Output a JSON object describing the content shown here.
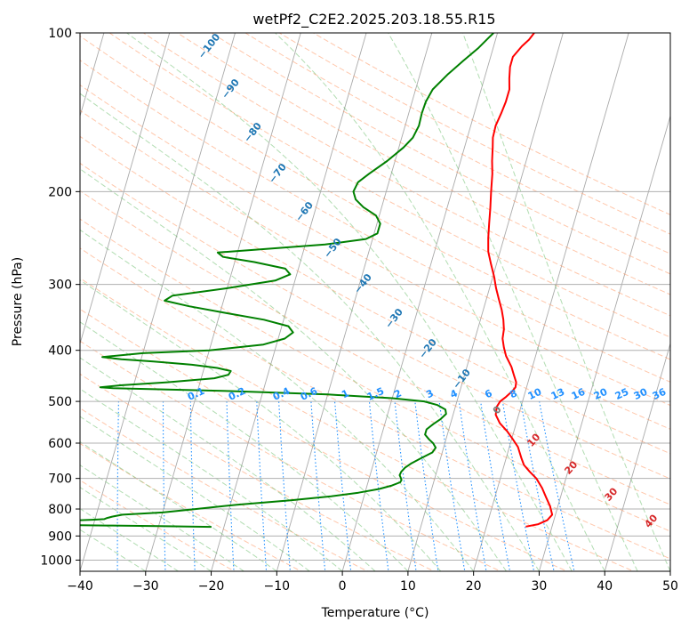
{
  "chart_data": {
    "type": "line",
    "title": "wetPf2_C2E2.2025.203.18.55.R15",
    "xlabel": "Temperature (°C)",
    "ylabel": "Pressure (hPa)",
    "xlim": [
      -40,
      50
    ],
    "ylim": [
      1050,
      100
    ],
    "yscale": "log",
    "grid": true,
    "x_ticks": [
      -40,
      -30,
      -20,
      -10,
      0,
      10,
      20,
      30,
      40,
      50
    ],
    "x_tick_labels": [
      "−40",
      "−30",
      "−20",
      "−10",
      "0",
      "10",
      "20",
      "30",
      "40",
      "50"
    ],
    "y_ticks": [
      100,
      200,
      300,
      400,
      500,
      600,
      700,
      800,
      900,
      1000
    ],
    "y_tick_labels": [
      "100",
      "200",
      "300",
      "400",
      "500",
      "600",
      "700",
      "800",
      "900",
      "1000"
    ],
    "series": [
      {
        "color": "#ff0000",
        "points": [
          [
            864,
            26
          ],
          [
            855,
            27.8
          ],
          [
            840,
            29
          ],
          [
            820,
            29.5
          ],
          [
            790,
            28.8
          ],
          [
            760,
            27.8
          ],
          [
            730,
            26.8
          ],
          [
            700,
            25.5
          ],
          [
            680,
            24.2
          ],
          [
            660,
            23
          ],
          [
            640,
            22.3
          ],
          [
            610,
            21.3
          ],
          [
            590,
            20.2
          ],
          [
            570,
            19.0
          ],
          [
            550,
            17.5
          ],
          [
            530,
            16.5
          ],
          [
            512,
            16.3
          ],
          [
            500,
            16.6
          ],
          [
            490,
            17.3
          ],
          [
            478,
            18.0
          ],
          [
            470,
            18.3
          ],
          [
            460,
            18.2
          ],
          [
            445,
            17.5
          ],
          [
            430,
            16.8
          ],
          [
            410,
            15.5
          ],
          [
            395,
            14.8
          ],
          [
            380,
            14.2
          ],
          [
            365,
            14.0
          ],
          [
            350,
            13.5
          ],
          [
            335,
            12.8
          ],
          [
            320,
            11.9
          ],
          [
            305,
            11.0
          ],
          [
            290,
            10.2
          ],
          [
            275,
            9.2
          ],
          [
            260,
            8.2
          ],
          [
            245,
            7.6
          ],
          [
            230,
            7.1
          ],
          [
            215,
            6.6
          ],
          [
            200,
            6.0
          ],
          [
            185,
            5.4
          ],
          [
            175,
            4.8
          ],
          [
            165,
            4.3
          ],
          [
            158,
            3.9
          ],
          [
            150,
            3.8
          ],
          [
            142,
            4.1
          ],
          [
            135,
            4.3
          ],
          [
            128,
            4.3
          ],
          [
            122,
            3.8
          ],
          [
            116,
            3.4
          ],
          [
            111,
            3.4
          ],
          [
            106,
            4.3
          ],
          [
            103,
            5.1
          ],
          [
            100,
            5.6
          ]
        ]
      },
      {
        "color": "#008000",
        "points": [
          [
            865,
            -21.9
          ],
          [
            862,
            -30
          ],
          [
            860,
            -38
          ],
          [
            858,
            -45
          ],
          [
            842,
            -44
          ],
          [
            838,
            -40
          ],
          [
            836,
            -38.6
          ],
          [
            832,
            -38.2
          ],
          [
            827,
            -37.5
          ],
          [
            820,
            -36
          ],
          [
            812,
            -30
          ],
          [
            800,
            -25
          ],
          [
            785,
            -19
          ],
          [
            770,
            -11
          ],
          [
            757,
            -5
          ],
          [
            745,
            -1
          ],
          [
            733,
            2
          ],
          [
            722,
            3.8
          ],
          [
            712,
            4.9
          ],
          [
            705,
            5.0
          ],
          [
            698,
            4.8
          ],
          [
            690,
            4.5
          ],
          [
            680,
            4.6
          ],
          [
            668,
            5.0
          ],
          [
            655,
            5.8
          ],
          [
            640,
            7.1
          ],
          [
            625,
            8.5
          ],
          [
            612,
            8.8
          ],
          [
            600,
            8.2
          ],
          [
            590,
            7.4
          ],
          [
            578,
            6.6
          ],
          [
            565,
            6.6
          ],
          [
            552,
            7.4
          ],
          [
            540,
            8.3
          ],
          [
            528,
            8.9
          ],
          [
            518,
            8.6
          ],
          [
            508,
            7.2
          ],
          [
            500,
            5.0
          ],
          [
            493,
            0
          ],
          [
            485,
            -10
          ],
          [
            478,
            -25
          ],
          [
            472,
            -43
          ],
          [
            470,
            -45
          ],
          [
            466,
            -42
          ],
          [
            460,
            -35
          ],
          [
            452,
            -28
          ],
          [
            445,
            -26
          ],
          [
            438,
            -25.8
          ],
          [
            432,
            -28
          ],
          [
            426,
            -32
          ],
          [
            420,
            -38
          ],
          [
            416,
            -43
          ],
          [
            412,
            -46
          ],
          [
            405,
            -40
          ],
          [
            400,
            -30
          ],
          [
            390,
            -22
          ],
          [
            380,
            -19
          ],
          [
            370,
            -18
          ],
          [
            360,
            -19
          ],
          [
            350,
            -23
          ],
          [
            340,
            -29
          ],
          [
            330,
            -35
          ],
          [
            322,
            -39
          ],
          [
            315,
            -38
          ],
          [
            305,
            -30
          ],
          [
            295,
            -23
          ],
          [
            287,
            -21
          ],
          [
            280,
            -22
          ],
          [
            272,
            -27
          ],
          [
            266,
            -32
          ],
          [
            261,
            -33
          ],
          [
            257,
            -26
          ],
          [
            252,
            -17
          ],
          [
            246,
            -11
          ],
          [
            240,
            -9.5
          ],
          [
            230,
            -9.5
          ],
          [
            222,
            -10.5
          ],
          [
            214,
            -12.8
          ],
          [
            207,
            -14.3
          ],
          [
            200,
            -15.0
          ],
          [
            192,
            -14.7
          ],
          [
            185,
            -13.4
          ],
          [
            175,
            -11.2
          ],
          [
            165,
            -9.3
          ],
          [
            158,
            -8.3
          ],
          [
            150,
            -7.9
          ],
          [
            142,
            -8.0
          ],
          [
            135,
            -7.9
          ],
          [
            128,
            -7.4
          ],
          [
            120,
            -5.8
          ],
          [
            113,
            -4.0
          ],
          [
            107,
            -2.3
          ],
          [
            102,
            -1.1
          ],
          [
            100,
            -0.6
          ]
        ]
      }
    ],
    "dry_adiabat_labels": [
      "−100",
      "−90",
      "−80",
      "−70",
      "−60",
      "−50",
      "−40",
      "−30",
      "−20",
      "−10",
      "0"
    ],
    "moist_adiabat_labels": [
      "10",
      "20",
      "30",
      "40"
    ],
    "mixing_ratio_labels": [
      "0.1",
      "0.2",
      "0.4",
      "0.6",
      "1",
      "1.5",
      "2",
      "3",
      "4",
      "6",
      "8",
      "10",
      "13",
      "16",
      "20",
      "25",
      "30",
      "36"
    ],
    "colors": {
      "temperature": "#ff0000",
      "dewpoint": "#008000",
      "isotherms": "#aaaaaa",
      "dry_adiabats": "#ff9966",
      "moist_adiabats": "#66bb66",
      "mixing_ratio": "#1f8fff",
      "dry_label": "#1f77b4",
      "moist_label": "#d62728"
    }
  }
}
